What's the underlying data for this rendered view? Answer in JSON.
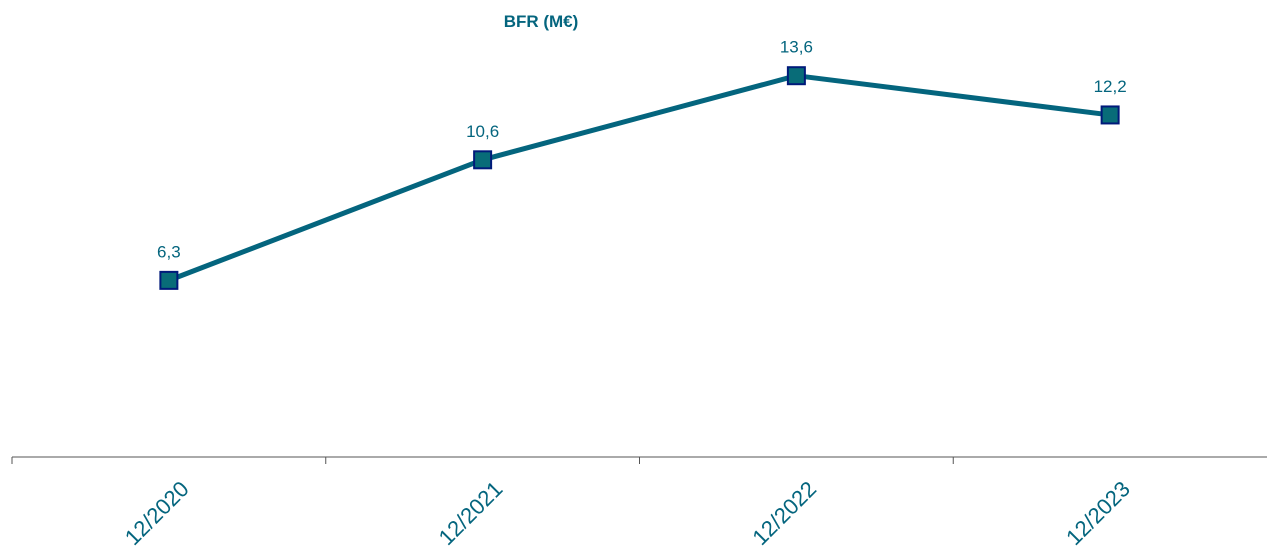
{
  "chart_data": {
    "type": "line",
    "title": "BFR (M€)",
    "categories": [
      "12/2020",
      "12/2021",
      "12/2022",
      "12/2023"
    ],
    "series": [
      {
        "values": [
          6.3,
          10.6,
          13.6,
          12.2
        ],
        "labels": [
          "6,3",
          "10,6",
          "13,6",
          "12,2"
        ]
      }
    ],
    "xlabel": "",
    "ylabel": "",
    "ylim": [
      0,
      16.3
    ],
    "grid": false,
    "legend": "none",
    "colors": {
      "line": "#04657E",
      "marker_fill": "#086C78",
      "marker_stroke": "#001A7A",
      "title": "#04657E",
      "labels": "#04657E",
      "axis": "#555555"
    }
  }
}
